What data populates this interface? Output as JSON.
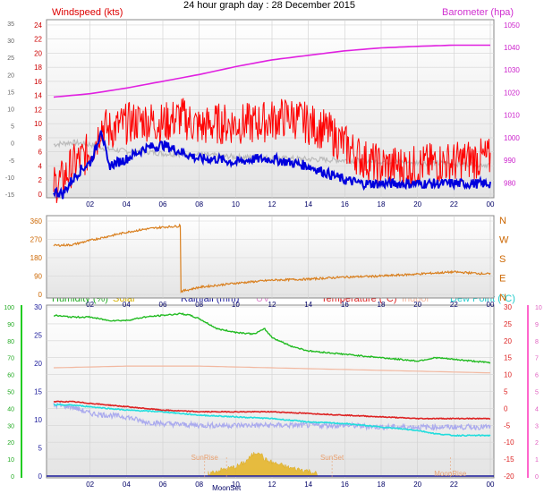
{
  "title": "24 hour graph day : 28 December 2015",
  "colors": {
    "wind_avg": "#ff0000",
    "wind_gust": "#0000dd",
    "barometer": "#e020e0",
    "wind_dir": "#d98020",
    "humidity": "#22bb22",
    "solar": "#e6b422",
    "rainfall": "#1a1a9a",
    "uv": "#e08ad0",
    "temperature": "#dd2222",
    "indoor": "#f2b8a0",
    "dew_point": "#22dddd",
    "apparent": "#aaaaee",
    "old_temp": "#bbbbbb"
  },
  "chart_data": [
    {
      "type": "line",
      "x_ticks": [
        "02",
        "04",
        "06",
        "08",
        "10",
        "12",
        "14",
        "16",
        "18",
        "20",
        "22",
        "00"
      ],
      "left_axis_a": {
        "label": "Windspeed (kts)",
        "ticks": [
          "0",
          "2",
          "4",
          "6",
          "8",
          "10",
          "12",
          "14",
          "16",
          "18",
          "20",
          "22",
          "24"
        ],
        "ylim": [
          0,
          24.5
        ]
      },
      "left_axis_b": {
        "ticks": [
          "-15",
          "-10",
          "-5",
          "0",
          "5",
          "10",
          "15",
          "20",
          "25",
          "30",
          "35"
        ]
      },
      "right_axis": {
        "label": "Barometer (hpa)",
        "ticks": [
          "980",
          "990",
          "1000",
          "1010",
          "1020",
          "1030",
          "1040",
          "1050"
        ],
        "ylim": [
          975,
          1051.5
        ]
      },
      "series": [
        {
          "name": "Barometer (hpa)",
          "axis": "right",
          "x": [
            0,
            2,
            4,
            6,
            8,
            10,
            12,
            14,
            16,
            18,
            20,
            22,
            24
          ],
          "values": [
            1018,
            1019.5,
            1022,
            1025,
            1028,
            1031.5,
            1034.5,
            1036.5,
            1038.5,
            1039.8,
            1040.5,
            1041,
            1041
          ]
        },
        {
          "name": "",
          "axis": "right",
          "x": [
            0,
            1,
            2,
            3,
            4,
            5,
            6,
            8,
            10,
            12,
            14,
            16,
            18,
            20,
            22,
            24
          ],
          "values": [
            997,
            998,
            997,
            995,
            994,
            994,
            993,
            992.5,
            991.5,
            991,
            990.5,
            990,
            989.5,
            989,
            988.5,
            988
          ]
        },
        {
          "name": "",
          "axis": "left",
          "x": [
            0,
            0.5,
            1,
            1.5,
            2,
            2.4,
            2.6,
            3,
            4,
            5,
            6,
            7,
            8,
            9,
            10,
            11,
            12,
            13,
            14,
            15,
            16,
            17,
            18,
            19,
            20,
            21,
            22,
            23,
            24
          ],
          "values": [
            1.5,
            2,
            4,
            5,
            6,
            8,
            10,
            9,
            10,
            10.5,
            10,
            11,
            9.5,
            10,
            10,
            10,
            10.5,
            11,
            10,
            9,
            7,
            5,
            4,
            4,
            4,
            4.5,
            4.5,
            5,
            5
          ]
        },
        {
          "name": "",
          "axis": "left",
          "x": [
            0,
            0.5,
            1,
            1.5,
            2,
            2.4,
            2.6,
            3,
            4,
            5,
            6,
            7,
            8,
            9,
            10,
            11,
            12,
            13,
            14,
            15,
            16,
            17,
            18,
            19,
            20,
            21,
            22,
            23,
            24
          ],
          "values": [
            0.5,
            0,
            2,
            3.5,
            4.5,
            7,
            9.5,
            4,
            5,
            6.5,
            7,
            6,
            5,
            5,
            4.5,
            5,
            5,
            4.5,
            4,
            3,
            2,
            1.5,
            1.5,
            1.5,
            1.5,
            1.5,
            1.5,
            1.5,
            1.5
          ]
        }
      ]
    },
    {
      "type": "line",
      "x_ticks": [
        "02",
        "04",
        "06",
        "08",
        "10",
        "12",
        "14",
        "16",
        "18",
        "20",
        "22",
        "00"
      ],
      "left_axis": {
        "ticks": [
          "0",
          "90",
          "180",
          "270",
          "360"
        ],
        "ylim": [
          0,
          360
        ]
      },
      "right_labels": [
        "N",
        "W",
        "S",
        "E",
        "N"
      ],
      "series": [
        {
          "name": "",
          "x": [
            0,
            1,
            2,
            3,
            4,
            5,
            6,
            6.9,
            7,
            8,
            10,
            12,
            14,
            16,
            18,
            20,
            22,
            24
          ],
          "values": [
            240,
            243,
            265,
            285,
            305,
            320,
            330,
            335,
            15,
            35,
            55,
            70,
            75,
            85,
            90,
            100,
            110,
            100
          ]
        }
      ]
    },
    {
      "type": "line",
      "legend": [
        "Humidity (%)",
        "Solar",
        "Rainfall (mm)",
        "UV",
        "Temperature (°C)",
        "Indoor",
        "Dew Point (°C)"
      ],
      "x_ticks": [
        "02",
        "04",
        "06",
        "08",
        "10",
        "12",
        "14",
        "16",
        "18",
        "20",
        "22",
        "00"
      ],
      "annotations": [
        "SunRise",
        "MoonSet",
        "SunSet",
        "MoonRise"
      ],
      "left_axis_humidity": {
        "ticks": [
          "0",
          "10",
          "20",
          "30",
          "40",
          "50",
          "60",
          "70",
          "80",
          "90",
          "100"
        ],
        "ylim": [
          0,
          100
        ]
      },
      "left_axis_b": {
        "ticks": [
          "0",
          "5",
          "10",
          "15",
          "20",
          "25",
          "30"
        ],
        "ylim": [
          0,
          30
        ]
      },
      "right_axis_temp": {
        "ticks": [
          "-20",
          "-15",
          "-10",
          "-5",
          "0",
          "5",
          "10",
          "15",
          "20",
          "25",
          "30"
        ],
        "ylim": [
          -20,
          30
        ]
      },
      "right_axis_uv": {
        "ticks": [
          "0",
          "1",
          "2",
          "3",
          "4",
          "5",
          "6",
          "7",
          "8",
          "9",
          "10"
        ],
        "ylim": [
          0,
          10
        ]
      },
      "series": [
        {
          "name": "Humidity (%)",
          "axis": "humidity",
          "x": [
            0,
            1,
            2,
            3,
            4,
            5,
            6,
            7,
            7.5,
            8,
            9,
            10,
            11,
            11.6,
            12,
            13,
            14,
            16,
            18,
            20,
            21,
            22,
            24
          ],
          "values": [
            95,
            94,
            94,
            92,
            92,
            94,
            95,
            96,
            95,
            93,
            87,
            85,
            84,
            87,
            82,
            77,
            74,
            72,
            70,
            68,
            70,
            69,
            67
          ]
        },
        {
          "name": "Temperature (°C)",
          "axis": "temp",
          "x": [
            0,
            1,
            2,
            4,
            6,
            8,
            10,
            12,
            14,
            16,
            18,
            20,
            22,
            24
          ],
          "values": [
            2,
            2,
            1.5,
            0.5,
            -0.5,
            -1,
            -1,
            -1,
            -1.5,
            -2,
            -2.5,
            -3,
            -3,
            -3
          ]
        },
        {
          "name": "Dew Point (°C)",
          "axis": "temp",
          "x": [
            0,
            1,
            2,
            4,
            6,
            8,
            10,
            12,
            14,
            16,
            18,
            20,
            21,
            22,
            24
          ],
          "values": [
            1,
            1,
            0.5,
            -0.5,
            -1,
            -2,
            -2.5,
            -3,
            -4,
            -4.5,
            -5.5,
            -6.5,
            -7.5,
            -8,
            -8
          ]
        },
        {
          "name": "Indoor",
          "axis": "temp",
          "x": [
            0,
            4,
            8,
            12,
            16,
            20,
            24
          ],
          "values": [
            12,
            12.5,
            12.5,
            12,
            11.5,
            11,
            10.5
          ]
        },
        {
          "name": "",
          "axis": "temp",
          "x": [
            0,
            1,
            2,
            3,
            4,
            5,
            6,
            8,
            10,
            12,
            14,
            16,
            18,
            20,
            22,
            24
          ],
          "values": [
            1,
            0.5,
            -1.5,
            -2,
            -2.5,
            -4,
            -4.5,
            -5,
            -5,
            -5,
            -5,
            -5,
            -5.5,
            -5.5,
            -5.5,
            -5.5
          ]
        },
        {
          "name": "Solar",
          "axis": "b",
          "x": [
            8.5,
            9,
            10,
            10.5,
            11,
            11.3,
            11.6,
            12,
            12.5,
            13,
            14,
            14.5
          ],
          "values": [
            0,
            0.5,
            1.2,
            2,
            3.5,
            4,
            2.5,
            2,
            1.5,
            1,
            0.5,
            0
          ]
        }
      ]
    }
  ]
}
